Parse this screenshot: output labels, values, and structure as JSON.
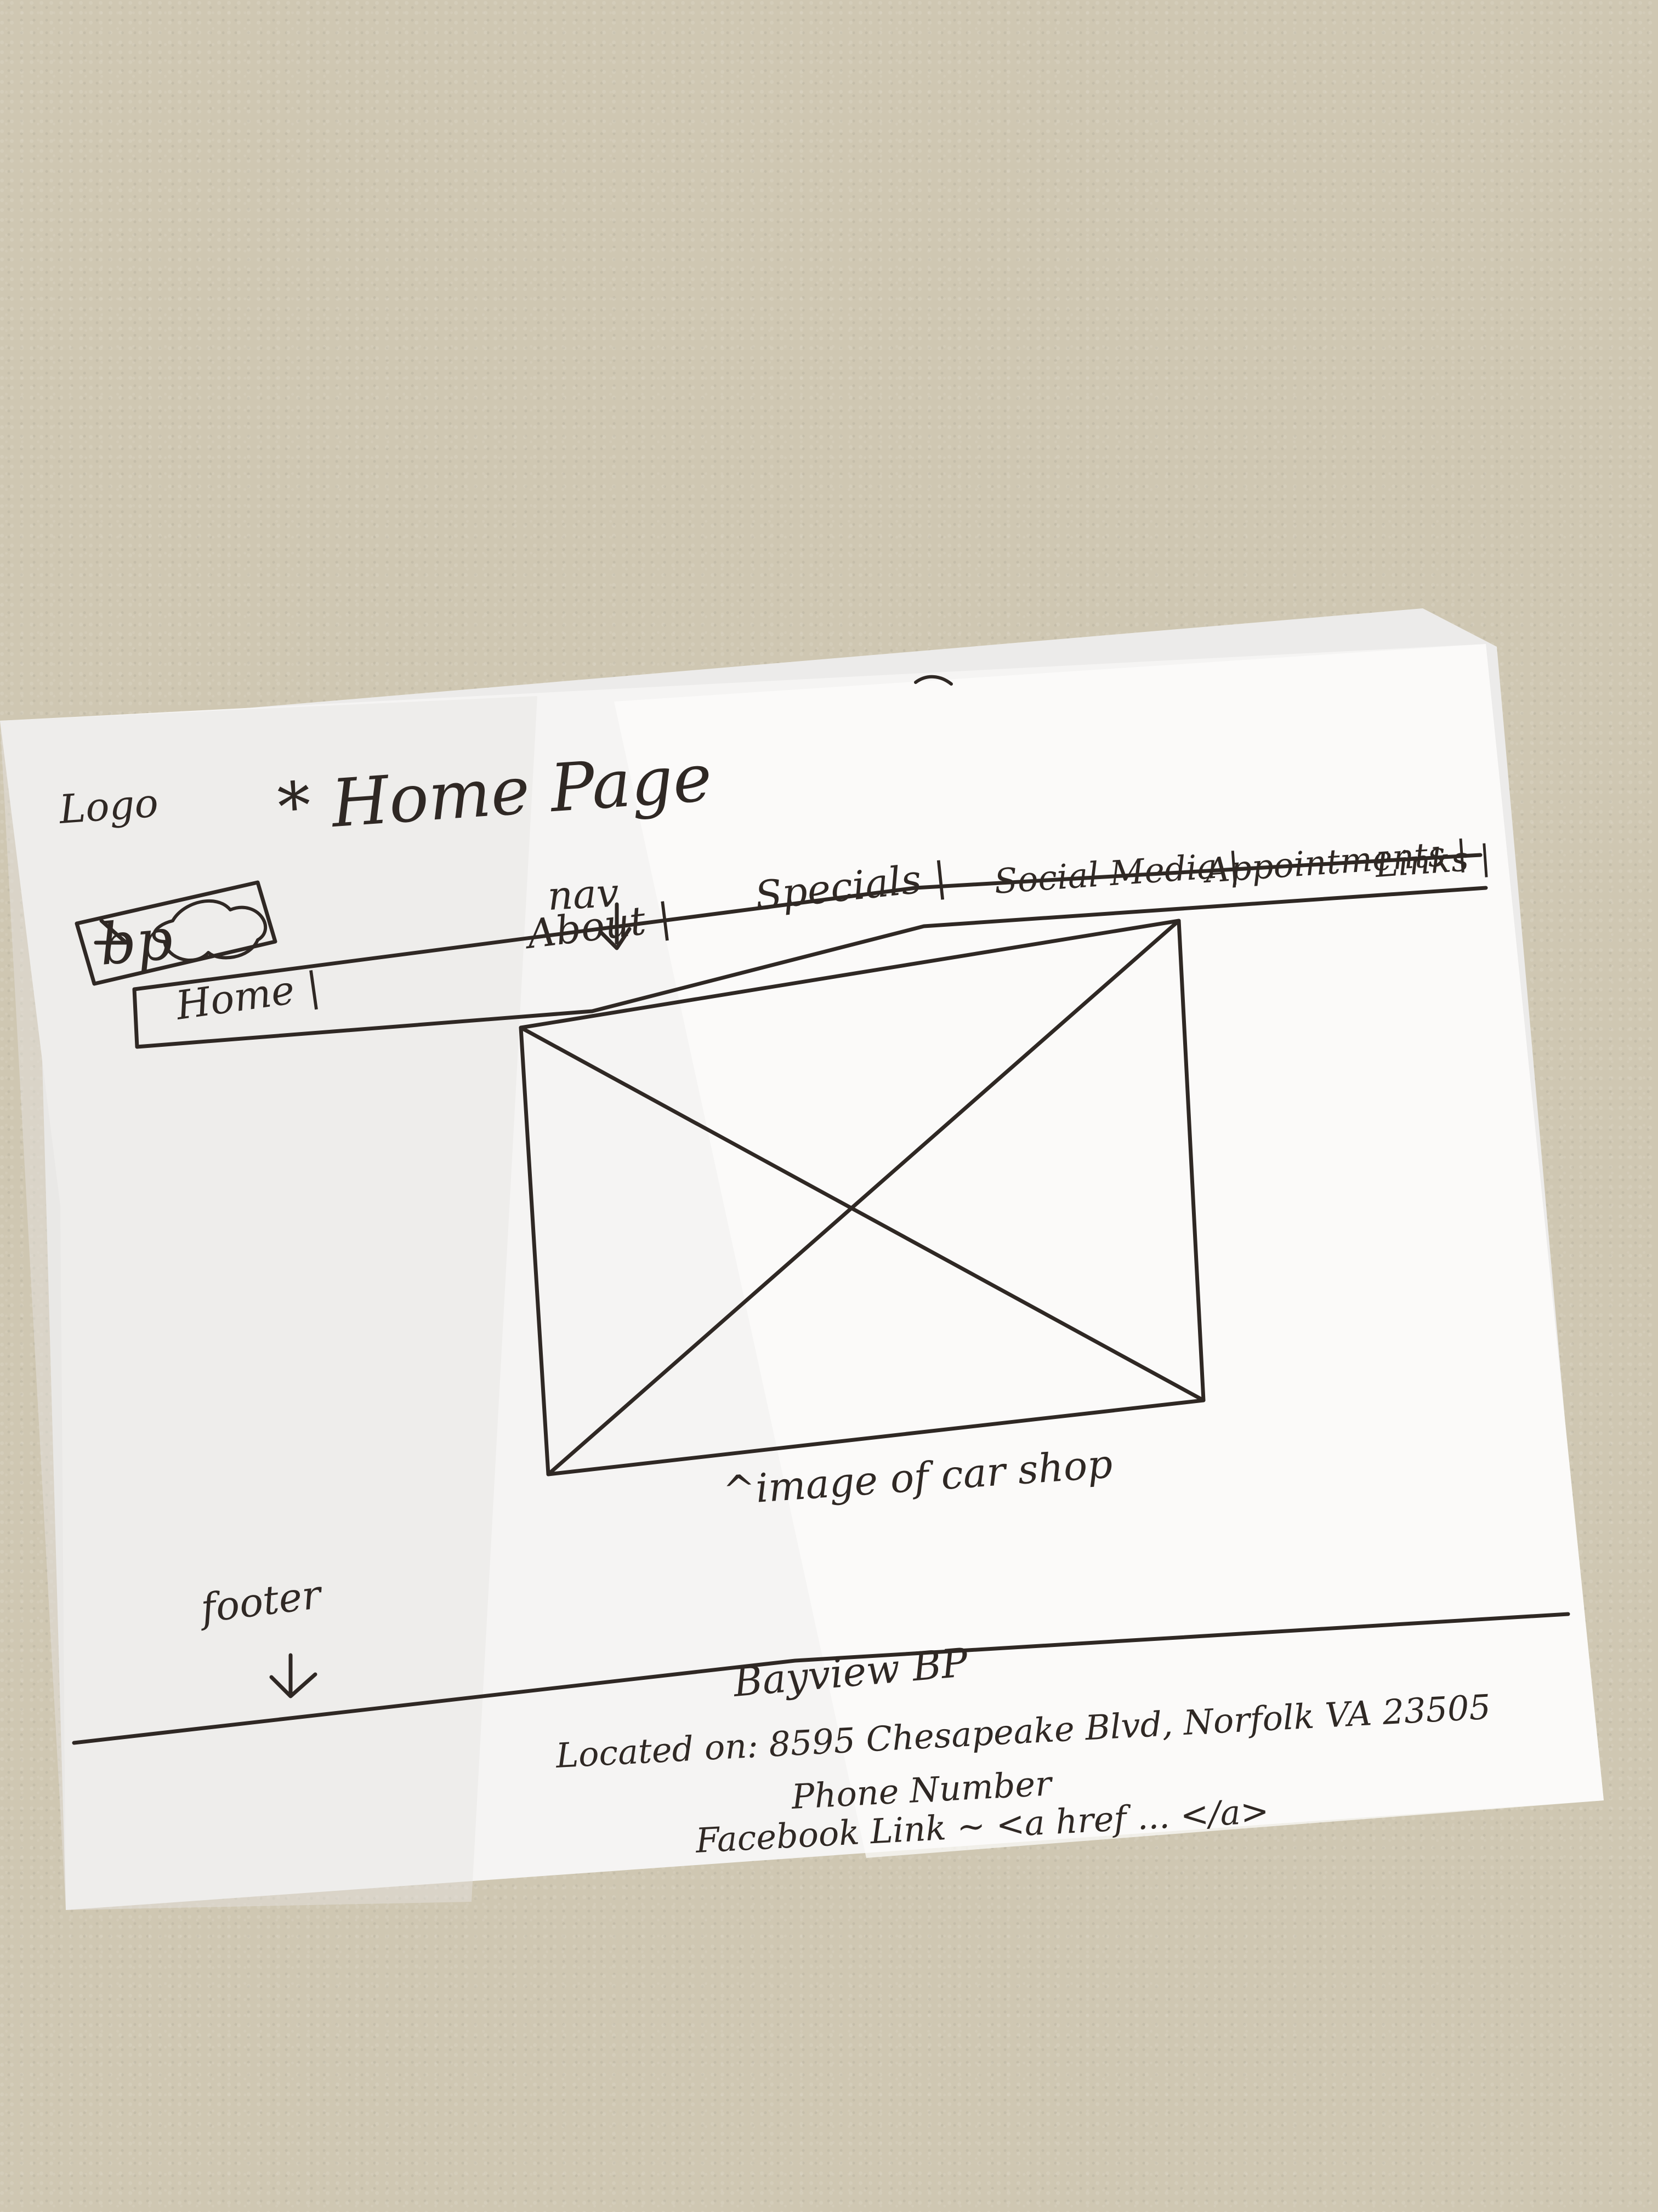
{
  "sketch": {
    "header": {
      "logo_label": "Logo",
      "page_title": "* Home Page",
      "nav_label": "nav",
      "logo_text": "bp"
    },
    "nav": {
      "items": [
        "Home |",
        "About |",
        "Specials |",
        "Social Media |",
        "Appointments |",
        "Links |"
      ]
    },
    "image_caption": "^image of car shop",
    "footer": {
      "label": "footer",
      "lines": [
        "Bayview BP",
        "Located on: 8595 Chesapeake Blvd, Norfolk VA 23505",
        "Phone Number",
        "Facebook Link ~ <a href ... </a>"
      ]
    }
  }
}
